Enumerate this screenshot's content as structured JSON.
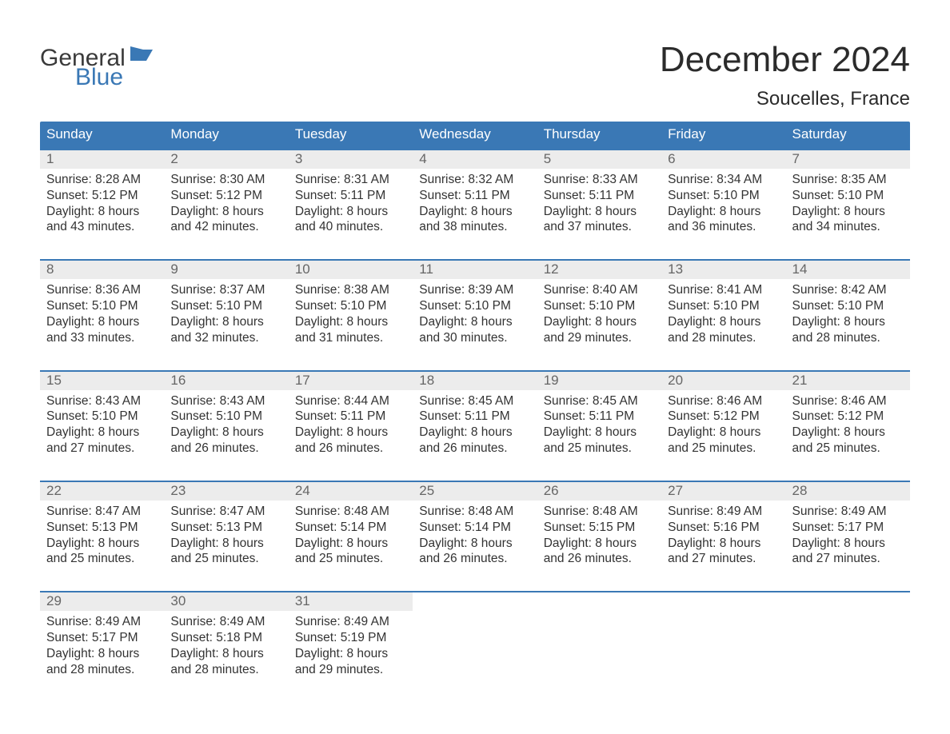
{
  "branding": {
    "logo_word1": "General",
    "logo_word2": "Blue",
    "logo_color_text": "#3a3a3a",
    "logo_color_accent": "#3a78b5"
  },
  "header": {
    "month_title": "December 2024",
    "location": "Soucelles, France"
  },
  "colors": {
    "header_bg": "#3a78b5",
    "header_text": "#ffffff",
    "daynum_bg": "#ececec",
    "daynum_text": "#666666",
    "body_text": "#333333",
    "week_border": "#3a78b5",
    "page_bg": "#ffffff"
  },
  "typography": {
    "month_title_fontsize": 44,
    "location_fontsize": 24,
    "dayheader_fontsize": 17,
    "daynum_fontsize": 17,
    "info_fontsize": 15.5
  },
  "day_names": [
    "Sunday",
    "Monday",
    "Tuesday",
    "Wednesday",
    "Thursday",
    "Friday",
    "Saturday"
  ],
  "labels": {
    "sunrise_prefix": "Sunrise: ",
    "sunset_prefix": "Sunset: ",
    "daylight_prefix": "Daylight: ",
    "and_minutes_suffix": " minutes."
  },
  "weeks": [
    [
      {
        "day": "1",
        "sunrise": "8:28 AM",
        "sunset": "5:12 PM",
        "dl1": "8 hours",
        "dl2": "and 43 minutes."
      },
      {
        "day": "2",
        "sunrise": "8:30 AM",
        "sunset": "5:12 PM",
        "dl1": "8 hours",
        "dl2": "and 42 minutes."
      },
      {
        "day": "3",
        "sunrise": "8:31 AM",
        "sunset": "5:11 PM",
        "dl1": "8 hours",
        "dl2": "and 40 minutes."
      },
      {
        "day": "4",
        "sunrise": "8:32 AM",
        "sunset": "5:11 PM",
        "dl1": "8 hours",
        "dl2": "and 38 minutes."
      },
      {
        "day": "5",
        "sunrise": "8:33 AM",
        "sunset": "5:11 PM",
        "dl1": "8 hours",
        "dl2": "and 37 minutes."
      },
      {
        "day": "6",
        "sunrise": "8:34 AM",
        "sunset": "5:10 PM",
        "dl1": "8 hours",
        "dl2": "and 36 minutes."
      },
      {
        "day": "7",
        "sunrise": "8:35 AM",
        "sunset": "5:10 PM",
        "dl1": "8 hours",
        "dl2": "and 34 minutes."
      }
    ],
    [
      {
        "day": "8",
        "sunrise": "8:36 AM",
        "sunset": "5:10 PM",
        "dl1": "8 hours",
        "dl2": "and 33 minutes."
      },
      {
        "day": "9",
        "sunrise": "8:37 AM",
        "sunset": "5:10 PM",
        "dl1": "8 hours",
        "dl2": "and 32 minutes."
      },
      {
        "day": "10",
        "sunrise": "8:38 AM",
        "sunset": "5:10 PM",
        "dl1": "8 hours",
        "dl2": "and 31 minutes."
      },
      {
        "day": "11",
        "sunrise": "8:39 AM",
        "sunset": "5:10 PM",
        "dl1": "8 hours",
        "dl2": "and 30 minutes."
      },
      {
        "day": "12",
        "sunrise": "8:40 AM",
        "sunset": "5:10 PM",
        "dl1": "8 hours",
        "dl2": "and 29 minutes."
      },
      {
        "day": "13",
        "sunrise": "8:41 AM",
        "sunset": "5:10 PM",
        "dl1": "8 hours",
        "dl2": "and 28 minutes."
      },
      {
        "day": "14",
        "sunrise": "8:42 AM",
        "sunset": "5:10 PM",
        "dl1": "8 hours",
        "dl2": "and 28 minutes."
      }
    ],
    [
      {
        "day": "15",
        "sunrise": "8:43 AM",
        "sunset": "5:10 PM",
        "dl1": "8 hours",
        "dl2": "and 27 minutes."
      },
      {
        "day": "16",
        "sunrise": "8:43 AM",
        "sunset": "5:10 PM",
        "dl1": "8 hours",
        "dl2": "and 26 minutes."
      },
      {
        "day": "17",
        "sunrise": "8:44 AM",
        "sunset": "5:11 PM",
        "dl1": "8 hours",
        "dl2": "and 26 minutes."
      },
      {
        "day": "18",
        "sunrise": "8:45 AM",
        "sunset": "5:11 PM",
        "dl1": "8 hours",
        "dl2": "and 26 minutes."
      },
      {
        "day": "19",
        "sunrise": "8:45 AM",
        "sunset": "5:11 PM",
        "dl1": "8 hours",
        "dl2": "and 25 minutes."
      },
      {
        "day": "20",
        "sunrise": "8:46 AM",
        "sunset": "5:12 PM",
        "dl1": "8 hours",
        "dl2": "and 25 minutes."
      },
      {
        "day": "21",
        "sunrise": "8:46 AM",
        "sunset": "5:12 PM",
        "dl1": "8 hours",
        "dl2": "and 25 minutes."
      }
    ],
    [
      {
        "day": "22",
        "sunrise": "8:47 AM",
        "sunset": "5:13 PM",
        "dl1": "8 hours",
        "dl2": "and 25 minutes."
      },
      {
        "day": "23",
        "sunrise": "8:47 AM",
        "sunset": "5:13 PM",
        "dl1": "8 hours",
        "dl2": "and 25 minutes."
      },
      {
        "day": "24",
        "sunrise": "8:48 AM",
        "sunset": "5:14 PM",
        "dl1": "8 hours",
        "dl2": "and 25 minutes."
      },
      {
        "day": "25",
        "sunrise": "8:48 AM",
        "sunset": "5:14 PM",
        "dl1": "8 hours",
        "dl2": "and 26 minutes."
      },
      {
        "day": "26",
        "sunrise": "8:48 AM",
        "sunset": "5:15 PM",
        "dl1": "8 hours",
        "dl2": "and 26 minutes."
      },
      {
        "day": "27",
        "sunrise": "8:49 AM",
        "sunset": "5:16 PM",
        "dl1": "8 hours",
        "dl2": "and 27 minutes."
      },
      {
        "day": "28",
        "sunrise": "8:49 AM",
        "sunset": "5:17 PM",
        "dl1": "8 hours",
        "dl2": "and 27 minutes."
      }
    ],
    [
      {
        "day": "29",
        "sunrise": "8:49 AM",
        "sunset": "5:17 PM",
        "dl1": "8 hours",
        "dl2": "and 28 minutes."
      },
      {
        "day": "30",
        "sunrise": "8:49 AM",
        "sunset": "5:18 PM",
        "dl1": "8 hours",
        "dl2": "and 28 minutes."
      },
      {
        "day": "31",
        "sunrise": "8:49 AM",
        "sunset": "5:19 PM",
        "dl1": "8 hours",
        "dl2": "and 29 minutes."
      },
      {
        "empty": true
      },
      {
        "empty": true
      },
      {
        "empty": true
      },
      {
        "empty": true
      }
    ]
  ]
}
